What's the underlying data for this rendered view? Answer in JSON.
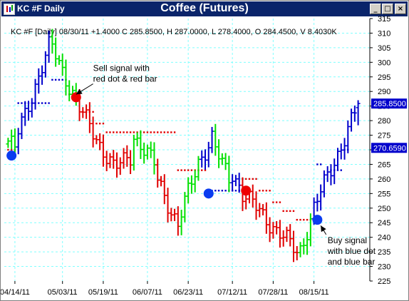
{
  "window": {
    "label": "KC #F Daily",
    "buttons": {
      "minimize": "_",
      "maximize": "□",
      "close": "×"
    }
  },
  "chart_data": {
    "type": "ohlc",
    "title": "Coffee (Futures)",
    "info_line": "KC #F [Daily] 08/30/11 +1.4000 C 285.8500, H 287.0000, L 278.4000, O 284.4500, V 8.4030K",
    "ylim": [
      225,
      315
    ],
    "y_ticks": [
      225,
      230,
      235,
      240,
      245,
      250,
      255,
      260,
      265,
      270,
      275,
      280,
      285,
      290,
      295,
      300,
      305,
      310,
      315
    ],
    "x_ticks": [
      "04/14/11",
      "05/03/11",
      "05/19/11",
      "06/07/11",
      "06/23/11",
      "07/12/11",
      "07/28/11",
      "08/15/11"
    ],
    "x_tick_bar_index": [
      2,
      16,
      28,
      41,
      53,
      66,
      78,
      90
    ],
    "bar_count": 104,
    "grid": true,
    "last_price_label": "285.8500",
    "stop_price_label": "270.6590",
    "colors": {
      "bullish": "#0000cc",
      "bearish": "#e00000",
      "neutral": "#00e000",
      "stop_buy": "#0000cc",
      "stop_sell": "#e00000",
      "grid": "#7fffff",
      "axis_text": "#000000",
      "price_label_bg": "#0000cc",
      "price_label_text": "#ffffff"
    },
    "segments": [
      {
        "from": 0,
        "to": 2,
        "color": "neutral",
        "start": 273,
        "end": 270
      },
      {
        "from": 3,
        "to": 12,
        "color": "bullish",
        "start": 276,
        "end": 305
      },
      {
        "from": 13,
        "to": 20,
        "color": "neutral",
        "start": 305,
        "end": 287
      },
      {
        "from": 21,
        "to": 31,
        "color": "bearish",
        "start": 284,
        "end": 264
      },
      {
        "from": 32,
        "to": 36,
        "color": "bearish",
        "start": 264,
        "end": 268
      },
      {
        "from": 37,
        "to": 43,
        "color": "neutral",
        "start": 275,
        "end": 265
      },
      {
        "from": 44,
        "to": 50,
        "color": "bearish",
        "start": 260,
        "end": 244
      },
      {
        "from": 51,
        "to": 56,
        "color": "neutral",
        "start": 248,
        "end": 266
      },
      {
        "from": 57,
        "to": 60,
        "color": "bullish",
        "start": 268,
        "end": 274
      },
      {
        "from": 61,
        "to": 65,
        "color": "neutral",
        "start": 270,
        "end": 260
      },
      {
        "from": 66,
        "to": 68,
        "color": "bullish",
        "start": 262,
        "end": 258
      },
      {
        "from": 69,
        "to": 85,
        "color": "bearish",
        "start": 255,
        "end": 235
      },
      {
        "from": 86,
        "to": 89,
        "color": "neutral",
        "start": 236,
        "end": 246
      },
      {
        "from": 90,
        "to": 103,
        "color": "bullish",
        "start": 250,
        "end": 285
      }
    ],
    "last_bar": {
      "open": 284.45,
      "high": 287.0,
      "low": 278.4,
      "close": 285.85
    },
    "stop_runs": [
      {
        "from": 0,
        "to": 2,
        "value": 270,
        "color": "stop_sell"
      },
      {
        "from": 3,
        "to": 12,
        "value": 286,
        "color": "stop_buy"
      },
      {
        "from": 13,
        "to": 17,
        "value": 294,
        "color": "stop_buy"
      },
      {
        "from": 18,
        "to": 21,
        "value": 289,
        "color": "stop_sell"
      },
      {
        "from": 22,
        "to": 25,
        "value": 283,
        "color": "stop_sell"
      },
      {
        "from": 26,
        "to": 28,
        "value": 279,
        "color": "stop_sell"
      },
      {
        "from": 29,
        "to": 49,
        "value": 276,
        "color": "stop_sell"
      },
      {
        "from": 50,
        "to": 58,
        "value": 263,
        "color": "stop_sell"
      },
      {
        "from": 59,
        "to": 68,
        "value": 256,
        "color": "stop_buy"
      },
      {
        "from": 69,
        "to": 73,
        "value": 260,
        "color": "stop_sell"
      },
      {
        "from": 74,
        "to": 77,
        "value": 256,
        "color": "stop_sell"
      },
      {
        "from": 78,
        "to": 80,
        "value": 252,
        "color": "stop_sell"
      },
      {
        "from": 81,
        "to": 84,
        "value": 249,
        "color": "stop_sell"
      },
      {
        "from": 85,
        "to": 89,
        "value": 246,
        "color": "stop_sell"
      },
      {
        "from": 91,
        "to": 92,
        "value": 265,
        "color": "stop_buy"
      },
      {
        "from": 95,
        "to": 98,
        "value": 263,
        "color": "stop_buy"
      },
      {
        "from": 99,
        "to": 100,
        "value": 270,
        "color": "stop_buy"
      }
    ],
    "signals": [
      {
        "type": "buy",
        "bar": 1,
        "value": 268
      },
      {
        "type": "sell",
        "bar": 20,
        "value": 288
      },
      {
        "type": "buy",
        "bar": 59,
        "value": 255
      },
      {
        "type": "sell",
        "bar": 70,
        "value": 256
      },
      {
        "type": "buy",
        "bar": 91,
        "value": 246
      }
    ],
    "annotations": [
      {
        "lines": [
          "Sell signal with",
          "red dot & red bar"
        ],
        "anchor_bar": 20,
        "anchor_value": 289,
        "text_bar": 25,
        "text_value": 297
      },
      {
        "lines": [
          "Buy signal",
          "with blue dot",
          "and blue bar"
        ],
        "anchor_bar": 92,
        "anchor_value": 244,
        "text_bar": 94,
        "text_value": 238
      }
    ]
  }
}
